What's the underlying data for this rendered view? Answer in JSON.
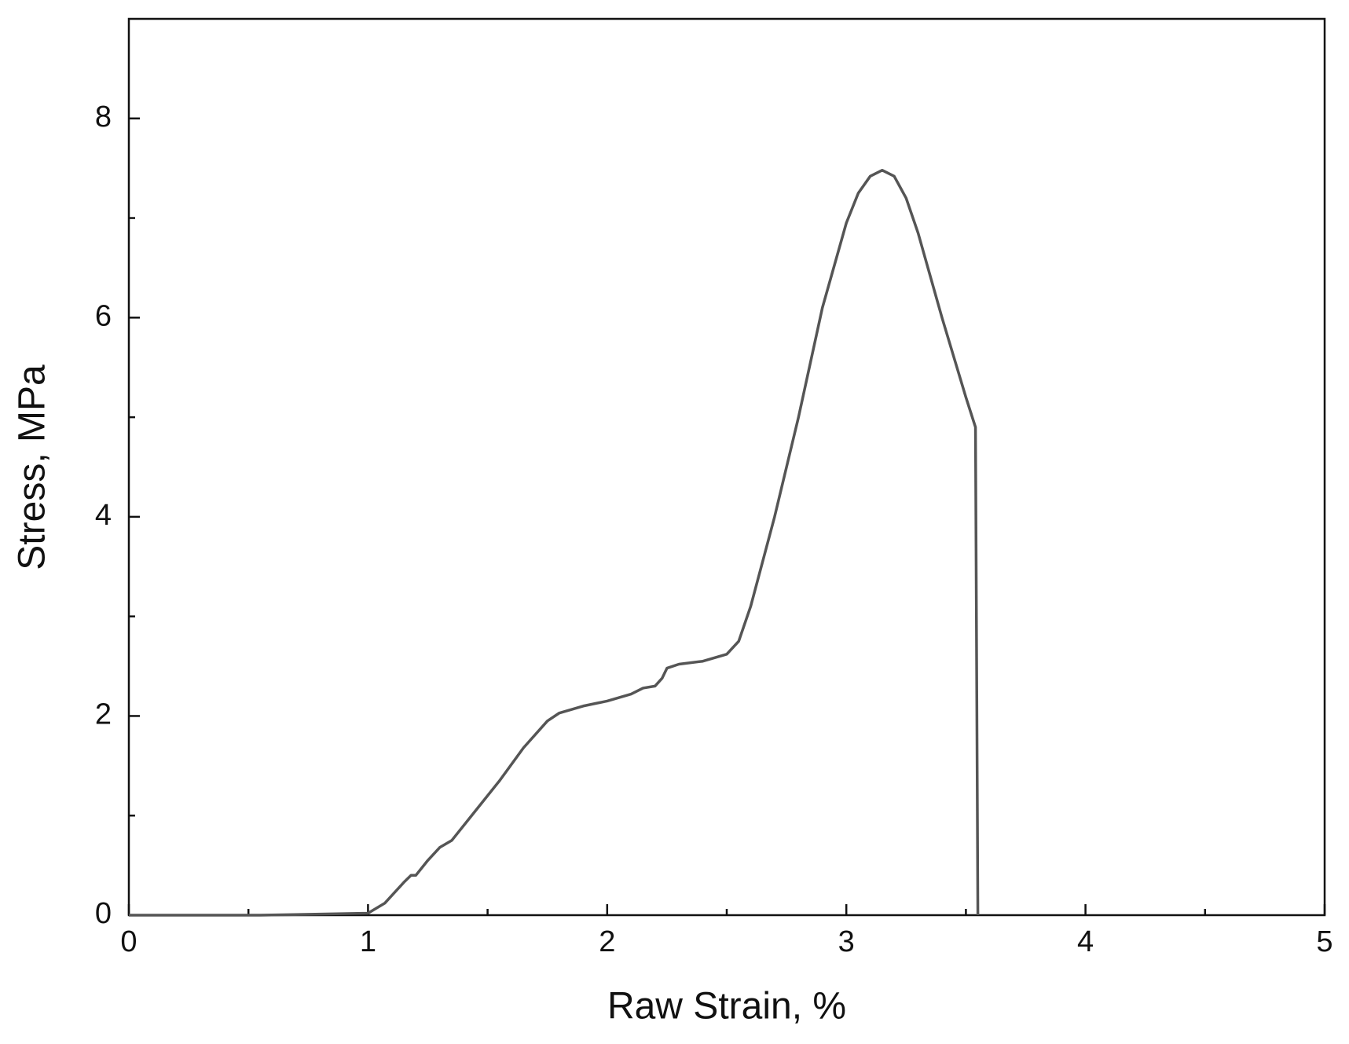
{
  "chart_data": {
    "type": "line",
    "x_label": "Raw Strain, %",
    "y_label": "Stress, MPa",
    "xlim": [
      0,
      5
    ],
    "ylim": [
      0,
      9
    ],
    "xticks": [
      0,
      1,
      2,
      3,
      4,
      5
    ],
    "yticks": [
      0,
      2,
      4,
      6,
      8
    ],
    "xminorticks": [
      0.5,
      1.5,
      2.5,
      3.5,
      4.5
    ],
    "yminorticks": [
      1,
      3,
      5,
      7
    ],
    "grid": false,
    "series": [
      {
        "color": "#555555",
        "x": [
          0,
          0.55,
          1.0,
          1.07,
          1.15,
          1.18,
          1.2,
          1.25,
          1.3,
          1.35,
          1.45,
          1.55,
          1.65,
          1.75,
          1.8,
          1.9,
          2.0,
          2.1,
          2.15,
          2.2,
          2.23,
          2.25,
          2.3,
          2.4,
          2.5,
          2.55,
          2.6,
          2.7,
          2.8,
          2.9,
          3.0,
          3.05,
          3.1,
          3.15,
          3.2,
          3.25,
          3.3,
          3.4,
          3.5,
          3.54,
          3.55
        ],
        "values": [
          0,
          0,
          0.02,
          0.12,
          0.33,
          0.4,
          0.4,
          0.55,
          0.68,
          0.75,
          1.05,
          1.35,
          1.68,
          1.95,
          2.03,
          2.1,
          2.15,
          2.22,
          2.28,
          2.3,
          2.38,
          2.48,
          2.52,
          2.55,
          2.62,
          2.75,
          3.1,
          4.0,
          5.0,
          6.1,
          6.95,
          7.25,
          7.42,
          7.48,
          7.42,
          7.2,
          6.85,
          6.0,
          5.2,
          4.9,
          0
        ]
      }
    ]
  }
}
